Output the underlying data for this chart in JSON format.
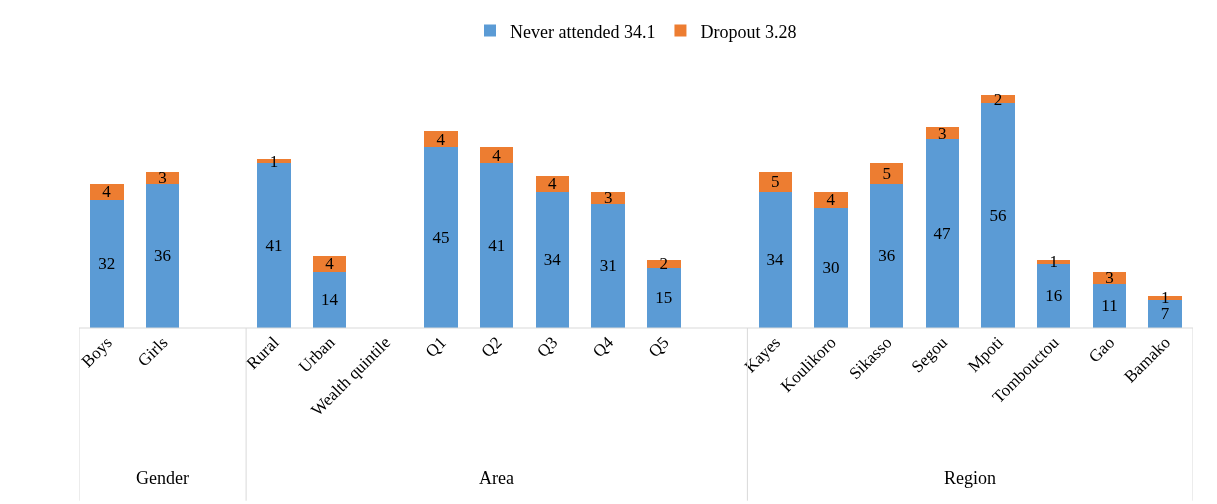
{
  "chart_data": {
    "type": "bar",
    "stacked": true,
    "data_labels": true,
    "legend": "top",
    "categories": [
      "Boys",
      "Girls",
      null,
      "Rural",
      "Urban",
      "Wealth quintile",
      "Q1",
      "Q2",
      "Q3",
      "Q4",
      "Q5",
      null,
      "Kayes",
      "Koulikoro",
      "Sikasso",
      "Segou",
      "Mpoti",
      "Tombouctou",
      "Gao",
      "Bamako"
    ],
    "series": [
      {
        "name": "Never attended 34.1",
        "color": "#5b9bd5",
        "values": [
          32,
          36,
          null,
          41,
          14,
          null,
          45,
          41,
          34,
          31,
          15,
          null,
          34,
          30,
          36,
          47,
          56,
          16,
          11,
          7
        ]
      },
      {
        "name": "Dropout 3.28",
        "color": "#ed7d31",
        "values": [
          4,
          3,
          null,
          1,
          4,
          null,
          4,
          4,
          4,
          3,
          2,
          null,
          5,
          4,
          5,
          3,
          2,
          1,
          3,
          1
        ]
      }
    ],
    "annotations": [
      "Gender",
      "Area",
      "Region"
    ]
  }
}
